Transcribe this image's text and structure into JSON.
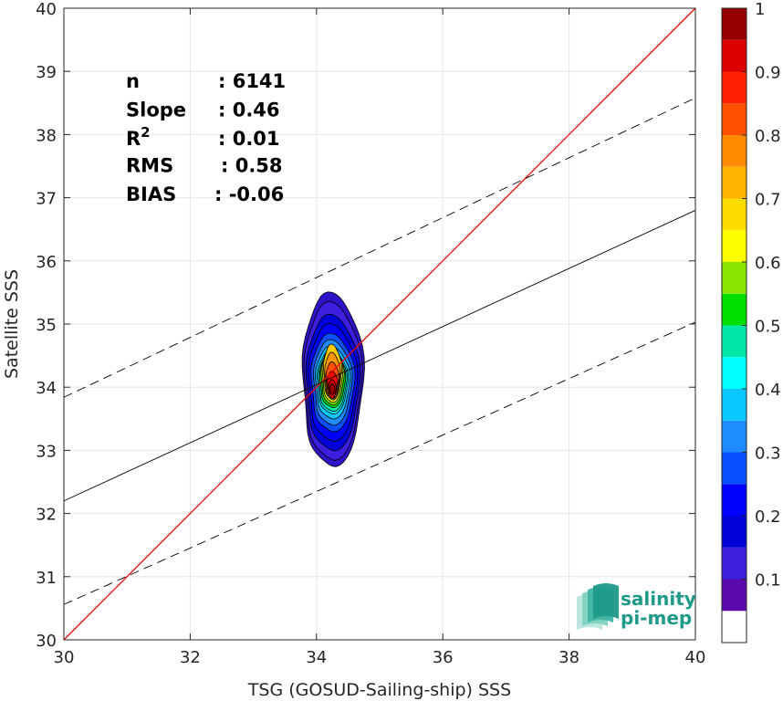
{
  "chart_data": {
    "type": "scatter",
    "subtype": "density-contour",
    "xlabel": "TSG (GOSUD-Sailing-ship) SSS",
    "ylabel": "Satellite SSS",
    "xlim": [
      30,
      40
    ],
    "ylim": [
      30,
      40
    ],
    "xticks": [
      "30",
      "32",
      "34",
      "36",
      "38",
      "40"
    ],
    "yticks": [
      "30",
      "31",
      "32",
      "33",
      "34",
      "35",
      "36",
      "37",
      "38",
      "39",
      "40"
    ],
    "grid": true,
    "stats": [
      {
        "label": "n",
        "sep": ":",
        "value": "6141"
      },
      {
        "label": "Slope",
        "sep": ":",
        "value": "0.46"
      },
      {
        "label": "R",
        "sup": "2",
        "sep": ":",
        "value": "0.01"
      },
      {
        "label": "RMS",
        "sep": ":",
        "value": "0.58"
      },
      {
        "label": "BIAS",
        "sep": ":",
        "value": "-0.06"
      }
    ],
    "lines": [
      {
        "kind": "identity",
        "color": "#ff0000",
        "style": "solid",
        "points": [
          [
            30,
            30
          ],
          [
            40,
            40
          ]
        ]
      },
      {
        "kind": "regression",
        "color": "#000000",
        "style": "solid",
        "points": [
          [
            30,
            32.2
          ],
          [
            40,
            36.8
          ]
        ]
      },
      {
        "kind": "upper-bound",
        "color": "#000000",
        "style": "dashed",
        "points": [
          [
            30,
            33.84
          ],
          [
            40,
            38.58
          ]
        ]
      },
      {
        "kind": "lower-bound",
        "color": "#000000",
        "style": "dashed",
        "points": [
          [
            30,
            30.56
          ],
          [
            40,
            35.03
          ]
        ]
      }
    ],
    "density_center": [
      34.25,
      34.1
    ],
    "density_contours": [
      {
        "level": 0.05,
        "color": "#2d14c8",
        "x_halfwidth": 0.48,
        "y_top": 35.5,
        "y_bottom": 32.75
      },
      {
        "level": 0.1,
        "color": "#3c1ede",
        "x_halfwidth": 0.45,
        "y_top": 35.35,
        "y_bottom": 32.85
      },
      {
        "level": 0.15,
        "color": "#0000d8",
        "x_halfwidth": 0.42,
        "y_top": 35.15,
        "y_bottom": 33.0
      },
      {
        "level": 0.2,
        "color": "#0000ff",
        "x_halfwidth": 0.38,
        "y_top": 35.0,
        "y_bottom": 33.15
      },
      {
        "level": 0.25,
        "color": "#0a50ff",
        "x_halfwidth": 0.34,
        "y_top": 34.85,
        "y_bottom": 33.3
      },
      {
        "level": 0.3,
        "color": "#1e8cff",
        "x_halfwidth": 0.3,
        "y_top": 34.75,
        "y_bottom": 33.4
      },
      {
        "level": 0.35,
        "color": "#0ac8ff",
        "x_halfwidth": 0.27,
        "y_top": 34.65,
        "y_bottom": 33.5
      },
      {
        "level": 0.4,
        "color": "#00ffff",
        "x_halfwidth": 0.24,
        "y_top": 34.58,
        "y_bottom": 33.58
      },
      {
        "level": 0.45,
        "color": "#00e8a8",
        "x_halfwidth": 0.22,
        "y_top": 34.55,
        "y_bottom": 33.62
      },
      {
        "level": 0.5,
        "color": "#00e000",
        "x_halfwidth": 0.2,
        "y_top": 34.52,
        "y_bottom": 33.68
      },
      {
        "level": 0.55,
        "color": "#8ae600",
        "x_halfwidth": 0.18,
        "y_top": 34.6,
        "y_bottom": 33.72
      },
      {
        "level": 0.6,
        "color": "#ffff00",
        "x_halfwidth": 0.16,
        "y_top": 34.65,
        "y_bottom": 33.76
      },
      {
        "level": 0.7,
        "color": "#ffc800",
        "x_halfwidth": 0.14,
        "y_top": 34.68,
        "y_bottom": 33.8
      },
      {
        "level": 0.75,
        "color": "#ff9600",
        "x_halfwidth": 0.12,
        "y_top": 34.55,
        "y_bottom": 33.82
      },
      {
        "level": 0.8,
        "color": "#ff5000",
        "x_halfwidth": 0.1,
        "y_top": 34.4,
        "y_bottom": 33.85
      },
      {
        "level": 0.85,
        "color": "#ff0000",
        "x_halfwidth": 0.08,
        "y_top": 34.25,
        "y_bottom": 33.9
      },
      {
        "level": 0.95,
        "color": "#c80000",
        "x_halfwidth": 0.06,
        "y_top": 34.12,
        "y_bottom": 33.82
      },
      {
        "level": 1.0,
        "color": "#960000",
        "x_halfwidth": 0.04,
        "y_top": 34.05,
        "y_bottom": 33.88
      }
    ],
    "colorbar": {
      "range": [
        0,
        1
      ],
      "ticks": [
        "0.1",
        "0.2",
        "0.3",
        "0.4",
        "0.5",
        "0.6",
        "0.7",
        "0.8",
        "0.9",
        "1"
      ],
      "bands": [
        {
          "from": 0.0,
          "to": 0.05,
          "color": "#ffffff"
        },
        {
          "from": 0.05,
          "to": 0.1,
          "color": "#5a0aaa"
        },
        {
          "from": 0.1,
          "to": 0.15,
          "color": "#3c1ede"
        },
        {
          "from": 0.15,
          "to": 0.2,
          "color": "#0000d8"
        },
        {
          "from": 0.2,
          "to": 0.25,
          "color": "#0000ff"
        },
        {
          "from": 0.25,
          "to": 0.3,
          "color": "#0a50ff"
        },
        {
          "from": 0.3,
          "to": 0.35,
          "color": "#1e8cff"
        },
        {
          "from": 0.35,
          "to": 0.4,
          "color": "#0ac8ff"
        },
        {
          "from": 0.4,
          "to": 0.45,
          "color": "#00ffff"
        },
        {
          "from": 0.45,
          "to": 0.5,
          "color": "#00e8a8"
        },
        {
          "from": 0.5,
          "to": 0.55,
          "color": "#00e000"
        },
        {
          "from": 0.55,
          "to": 0.6,
          "color": "#8ae600"
        },
        {
          "from": 0.6,
          "to": 0.65,
          "color": "#ffff00"
        },
        {
          "from": 0.65,
          "to": 0.7,
          "color": "#ffdc00"
        },
        {
          "from": 0.7,
          "to": 0.75,
          "color": "#ffb400"
        },
        {
          "from": 0.75,
          "to": 0.8,
          "color": "#ff8c00"
        },
        {
          "from": 0.8,
          "to": 0.85,
          "color": "#ff5000"
        },
        {
          "from": 0.85,
          "to": 0.9,
          "color": "#ff1e00"
        },
        {
          "from": 0.9,
          "to": 0.95,
          "color": "#dc0000"
        },
        {
          "from": 0.95,
          "to": 1.0,
          "color": "#960000"
        }
      ]
    }
  },
  "logo": {
    "line1": "salinity",
    "line2": "pi-mep",
    "color": "#1f9a8a"
  }
}
